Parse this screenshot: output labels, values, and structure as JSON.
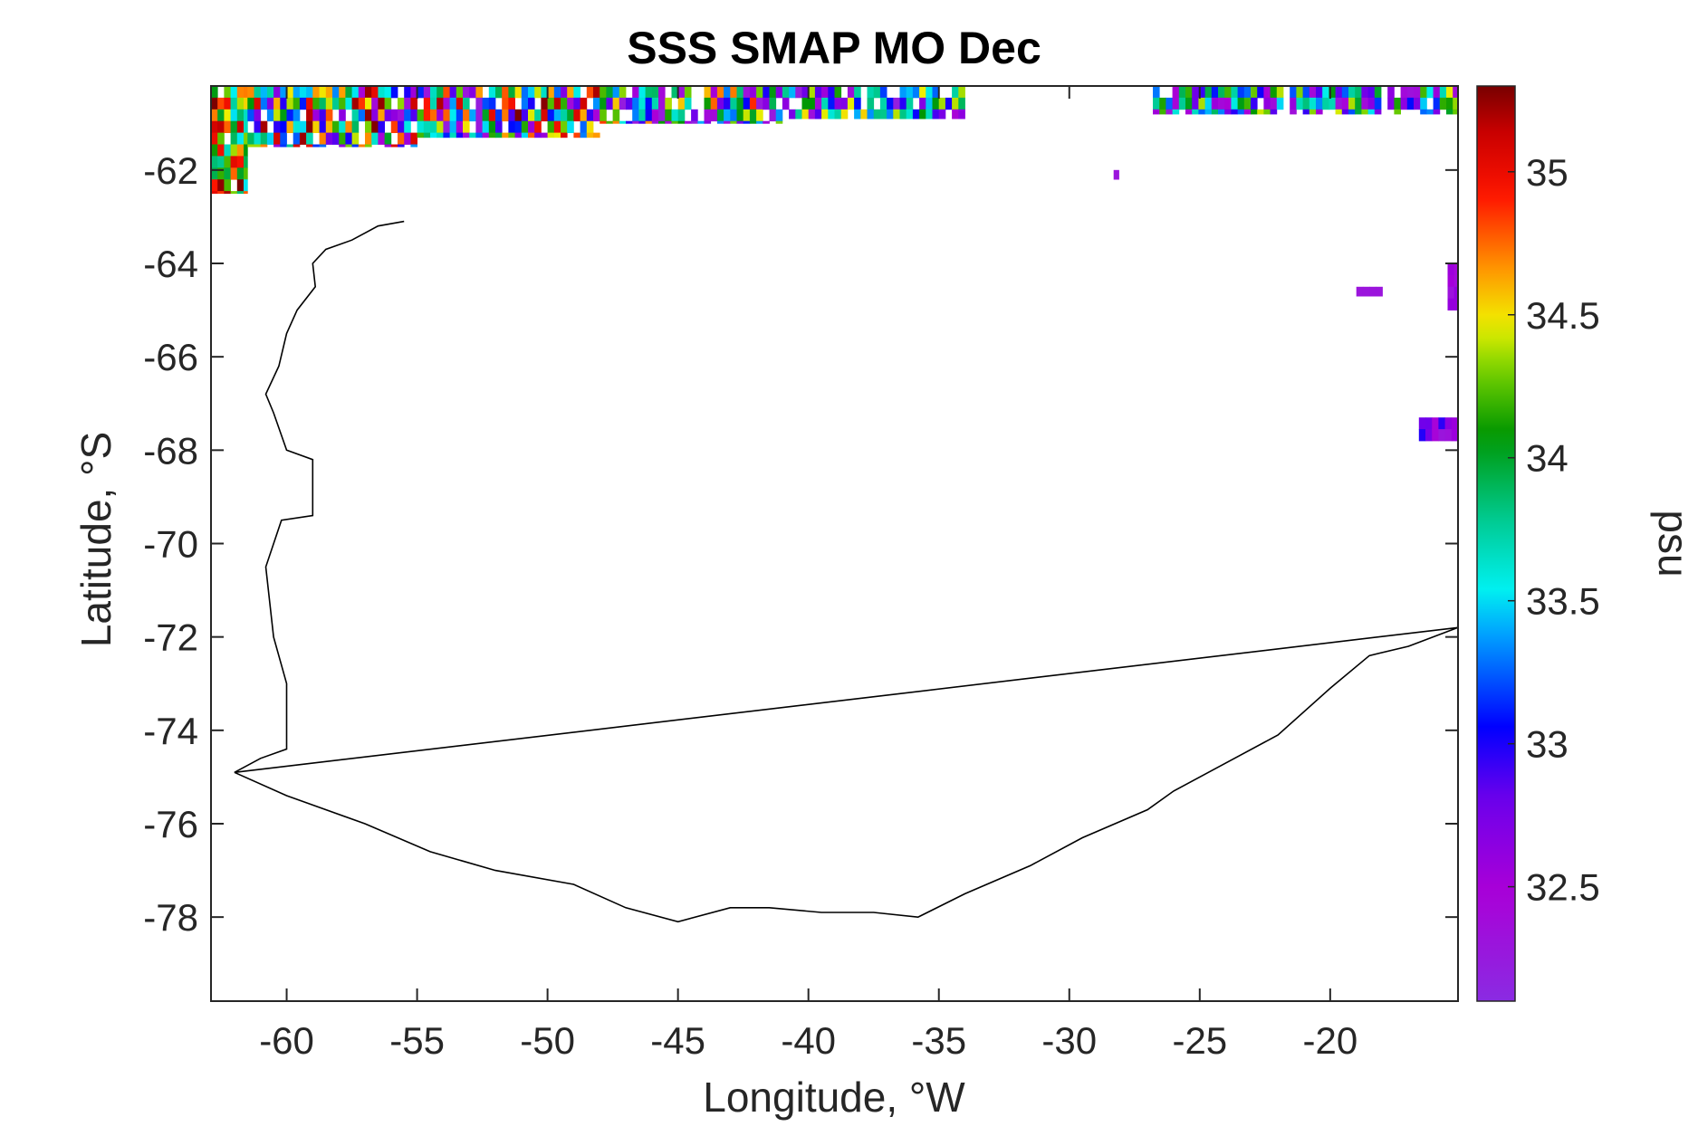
{
  "chart_data": {
    "type": "heatmap",
    "title": "SSS SMAP MO Dec",
    "xlabel": "Longitude, °W",
    "ylabel": "Latitude, °S",
    "colorbar_label": "psu",
    "xlim": [
      -62.9,
      -15.1
    ],
    "ylim": [
      -79.8,
      -60.2
    ],
    "xticks": [
      -60,
      -55,
      -50,
      -45,
      -40,
      -35,
      -30,
      -25,
      -20
    ],
    "xtick_labels": [
      "-60",
      "-55",
      "-50",
      "-45",
      "-40",
      "-35",
      "-30",
      "-25",
      "-20"
    ],
    "yticks": [
      -62,
      -64,
      -66,
      -68,
      -70,
      -72,
      -74,
      -76,
      -78
    ],
    "ytick_labels": [
      "-62",
      "-64",
      "-66",
      "-68",
      "-70",
      "-72",
      "-74",
      "-76",
      "-78"
    ],
    "clim": [
      32.1,
      35.3
    ],
    "cticks": [
      32.5,
      33,
      33.5,
      34,
      34.5,
      35
    ],
    "ctick_labels": [
      "32.5",
      "33",
      "33.5",
      "34",
      "34.5",
      "35"
    ],
    "colormap": "jet-like (purple-blue-cyan-green-yellow-red-darkred)",
    "grid": false,
    "cell_size_deg": [
      0.25,
      0.25
    ],
    "pixel_regions": [
      {
        "lon": [
          -62.9,
          -61.5
        ],
        "lat": [
          -62.5,
          -60.2
        ],
        "value_range": [
          33.5,
          35.3
        ]
      },
      {
        "lon": [
          -61.5,
          -55.0
        ],
        "lat": [
          -61.5,
          -60.2
        ],
        "value_range": [
          32.3,
          35.3
        ]
      },
      {
        "lon": [
          -55.0,
          -48.0
        ],
        "lat": [
          -61.3,
          -60.2
        ],
        "value_range": [
          32.2,
          35.3
        ]
      },
      {
        "lon": [
          -48.0,
          -41.0
        ],
        "lat": [
          -61.0,
          -60.2
        ],
        "value_range": [
          32.2,
          35.0
        ]
      },
      {
        "lon": [
          -41.0,
          -34.0
        ],
        "lat": [
          -60.9,
          -60.2
        ],
        "value_range": [
          32.2,
          34.6
        ]
      },
      {
        "lon": [
          -26.8,
          -15.1
        ],
        "lat": [
          -60.8,
          -60.2
        ],
        "value_range": [
          32.3,
          34.5
        ]
      },
      {
        "lon": [
          -28.3,
          -28.1
        ],
        "lat": [
          -62.2,
          -62.0
        ],
        "value_range": [
          32.3,
          32.3
        ]
      },
      {
        "lon": [
          -19.0,
          -18.0
        ],
        "lat": [
          -64.7,
          -64.5
        ],
        "value_range": [
          32.3,
          32.3
        ]
      },
      {
        "lon": [
          -15.5,
          -15.1
        ],
        "lat": [
          -65.0,
          -64.0
        ],
        "value_range": [
          32.3,
          32.6
        ]
      },
      {
        "lon": [
          -16.6,
          -15.1
        ],
        "lat": [
          -67.8,
          -67.3
        ],
        "value_range": [
          32.2,
          33.0
        ]
      }
    ],
    "coastline": [
      [
        -62.0,
        -74.9
      ],
      [
        -60.0,
        -75.4
      ],
      [
        -57.0,
        -76.0
      ],
      [
        -54.5,
        -76.6
      ],
      [
        -52.0,
        -77.0
      ],
      [
        -49.0,
        -77.3
      ],
      [
        -47.0,
        -77.8
      ],
      [
        -45.0,
        -78.1
      ],
      [
        -43.0,
        -77.8
      ],
      [
        -41.5,
        -77.8
      ],
      [
        -39.5,
        -77.9
      ],
      [
        -37.5,
        -77.9
      ],
      [
        -35.8,
        -78.0
      ],
      [
        -34.0,
        -77.5
      ],
      [
        -31.5,
        -76.9
      ],
      [
        -29.5,
        -76.3
      ],
      [
        -27.0,
        -75.7
      ],
      [
        -26.0,
        -75.3
      ],
      [
        -24.0,
        -74.7
      ],
      [
        -22.0,
        -74.1
      ],
      [
        -20.0,
        -73.1
      ],
      [
        -18.5,
        -72.4
      ],
      [
        -17.0,
        -72.2
      ],
      [
        -15.1,
        -71.8
      ],
      [
        -15.1,
        -71.8
      ],
      [
        -62.0,
        -74.9
      ],
      [
        -61.0,
        -74.6
      ],
      [
        -60.0,
        -74.4
      ],
      [
        -60.0,
        -73.0
      ],
      [
        -60.5,
        -72.0
      ],
      [
        -60.8,
        -70.5
      ],
      [
        -60.2,
        -69.5
      ],
      [
        -59.0,
        -69.4
      ],
      [
        -59.0,
        -68.2
      ],
      [
        -60.0,
        -68.0
      ],
      [
        -60.5,
        -67.2
      ],
      [
        -60.8,
        -66.8
      ],
      [
        -60.3,
        -66.2
      ],
      [
        -60.0,
        -65.5
      ],
      [
        -59.6,
        -65.0
      ],
      [
        -58.9,
        -64.5
      ],
      [
        -59.0,
        -64.0
      ],
      [
        -58.5,
        -63.7
      ],
      [
        -57.5,
        -63.5
      ],
      [
        -56.5,
        -63.2
      ],
      [
        -55.5,
        -63.1
      ]
    ]
  }
}
